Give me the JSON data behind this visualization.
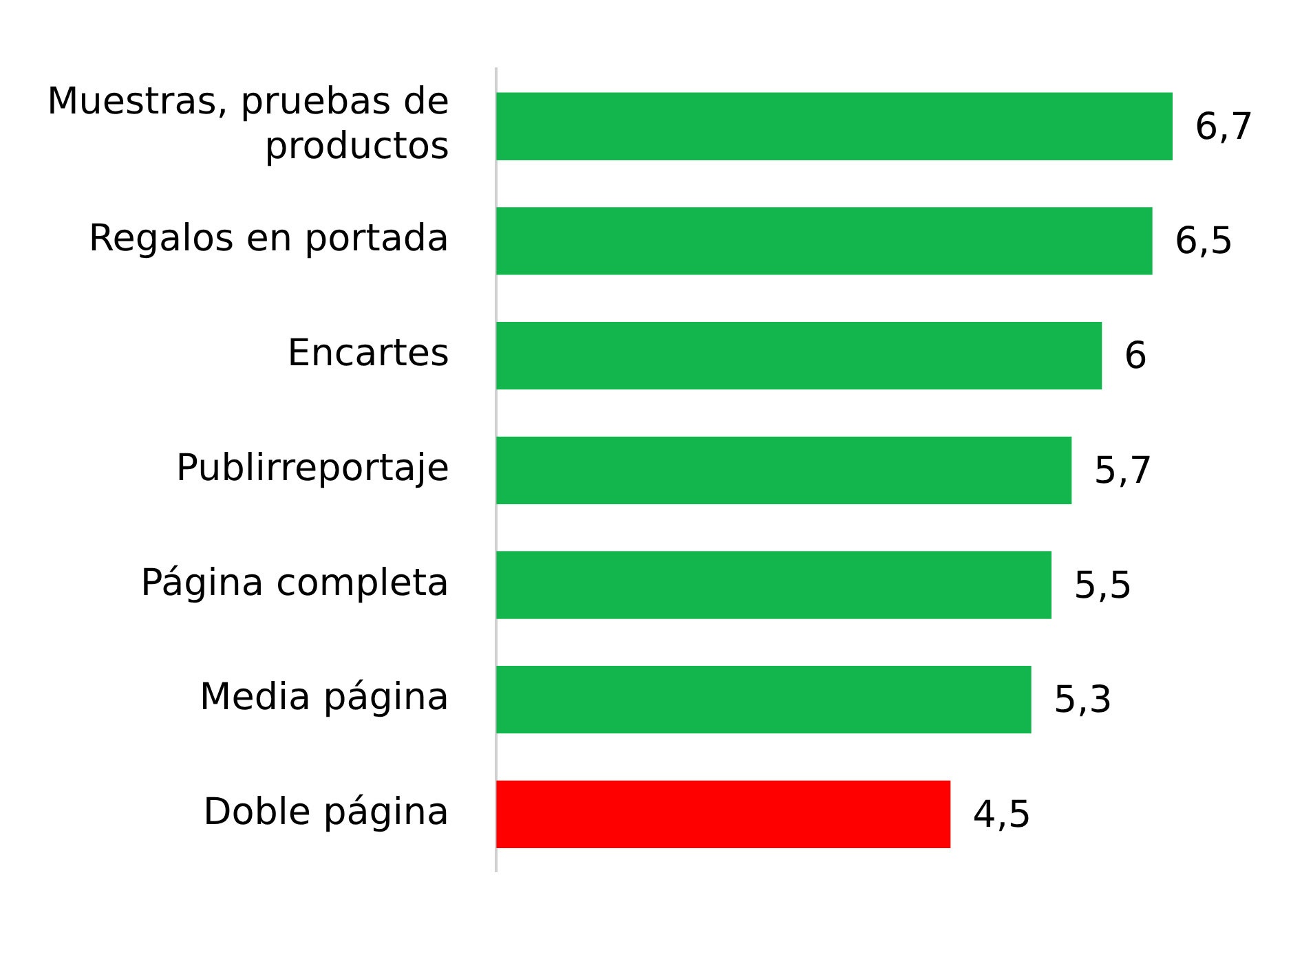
{
  "chart_data": {
    "type": "bar",
    "orientation": "horizontal",
    "categories": [
      "Muestras, pruebas de productos",
      "Regalos en portada",
      "Encartes",
      "Publirreportaje",
      "Página completa",
      "Media página",
      "Doble página"
    ],
    "values": [
      6.7,
      6.5,
      6,
      5.7,
      5.5,
      5.3,
      4.5
    ],
    "colors": [
      "#13b54d",
      "#13b54d",
      "#13b54d",
      "#13b54d",
      "#13b54d",
      "#13b54d",
      "#ff0000"
    ],
    "value_labels": [
      "6,7",
      "6,5",
      "6",
      "5,7",
      "5,5",
      "5,3",
      "4,5"
    ],
    "tick_labels": "y",
    "grid": false,
    "legend": false
  }
}
